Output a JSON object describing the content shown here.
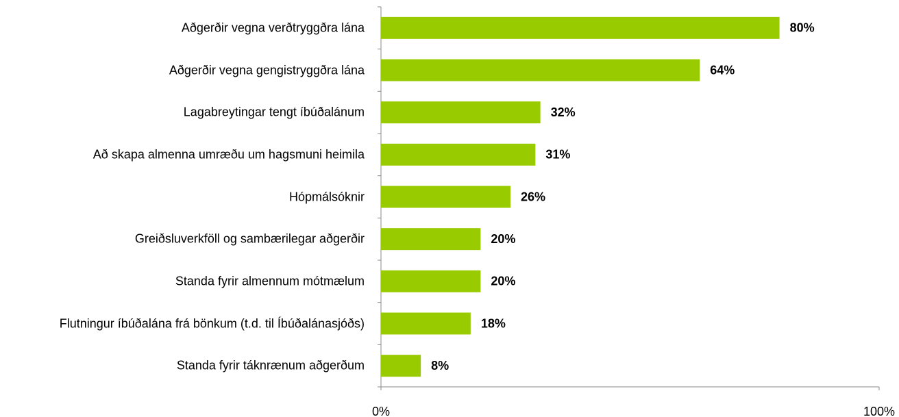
{
  "chart_data": {
    "type": "bar",
    "orientation": "horizontal",
    "categories": [
      "Aðgerðir vegna verðtryggðra lána",
      "Aðgerðir vegna gengistryggðra lána",
      "Lagabreytingar tengt íbúðalánum",
      "Að skapa almenna umræðu um hagsmuni heimila",
      "Hópmálsóknir",
      "Greiðsluverkföll og sambærilegar aðgerðir",
      "Standa fyrir almennum mótmælum",
      "Flutningur íbúðalána frá bönkum (t.d. til Íbúðalánasjóðs)",
      "Standa fyrir táknrænum aðgerðum"
    ],
    "values": [
      80,
      64,
      32,
      31,
      26,
      20,
      20,
      18,
      8
    ],
    "value_labels": [
      "80%",
      "64%",
      "32%",
      "31%",
      "26%",
      "20%",
      "20%",
      "18%",
      "8%"
    ],
    "color": "#99cc00",
    "xlim": [
      0,
      100
    ],
    "xticks": [
      {
        "value": 0,
        "label": "0%"
      },
      {
        "value": 100,
        "label": "100%"
      }
    ]
  }
}
